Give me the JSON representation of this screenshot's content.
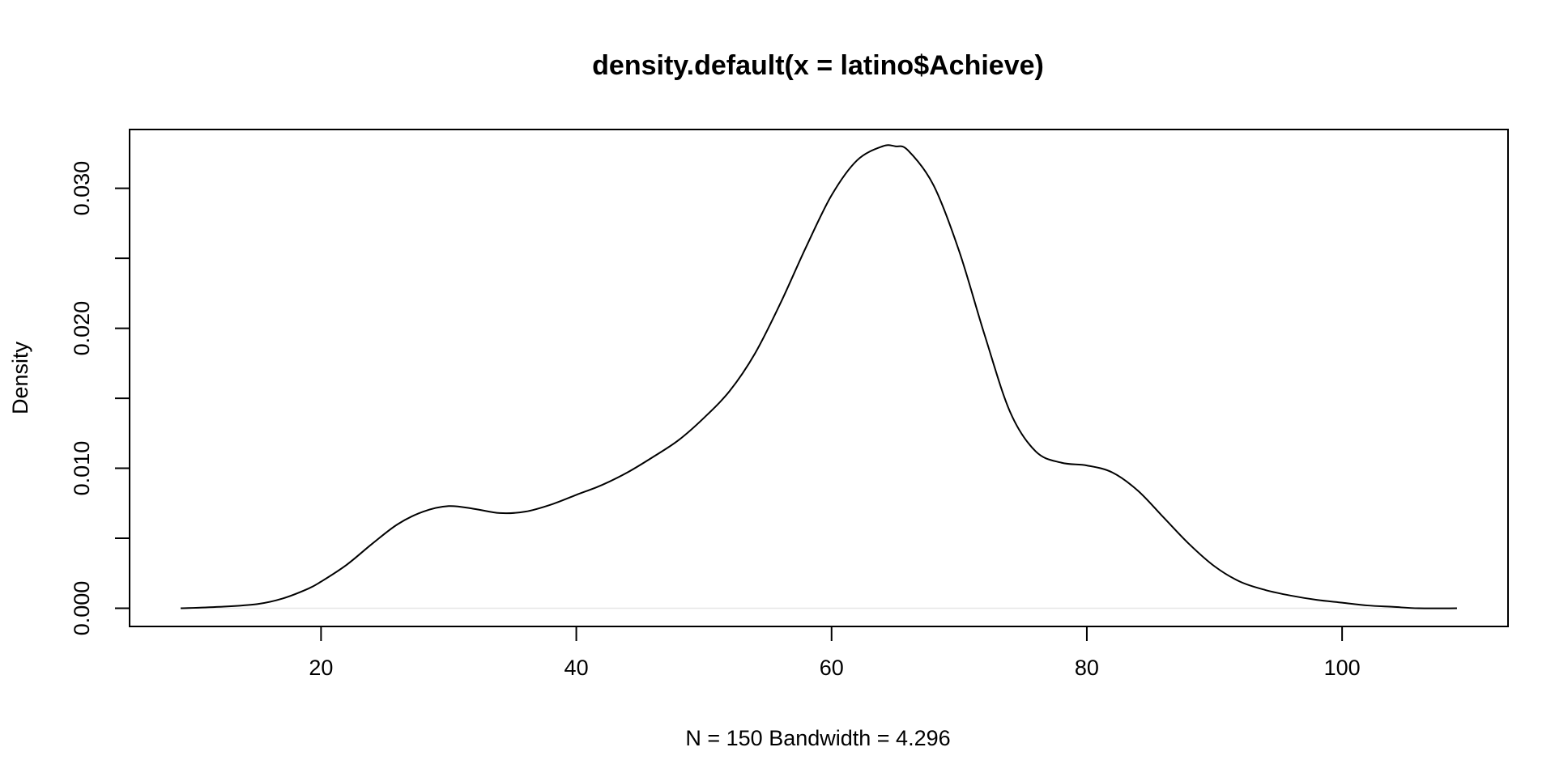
{
  "chart_data": {
    "type": "line",
    "title": "density.default(x = latino$Achieve)",
    "xlabel": "N = 150   Bandwidth = 4.296",
    "ylabel": "Density",
    "xlim": [
      5,
      113
    ],
    "ylim": [
      -0.0013,
      0.0342
    ],
    "x_ticks": [
      20,
      40,
      60,
      80,
      100
    ],
    "y_ticks": [
      0.0,
      0.005,
      0.01,
      0.015,
      0.02,
      0.025,
      0.03
    ],
    "y_tick_labels": [
      {
        "value": 0.0,
        "label": "0.000"
      },
      {
        "value": 0.01,
        "label": "0.010"
      },
      {
        "value": 0.02,
        "label": "0.020"
      },
      {
        "value": 0.03,
        "label": "0.030"
      }
    ],
    "baseline": 0,
    "grid": false,
    "line_color": "#000000",
    "baseline_color": "#e6e6e6",
    "series": [
      {
        "x": [
          9,
          12,
          15,
          17,
          19,
          20,
          22,
          24,
          26,
          28,
          30,
          32,
          34,
          36,
          38,
          40,
          42,
          44,
          46,
          48,
          50,
          52,
          54,
          56,
          58,
          60,
          62,
          64,
          65,
          66,
          68,
          70,
          72,
          74,
          76,
          78,
          80,
          82,
          84,
          86,
          88,
          90,
          92,
          94,
          96,
          98,
          100,
          102,
          104,
          106,
          109
        ],
        "y": [
          0.0,
          0.0001,
          0.0003,
          0.0007,
          0.0014,
          0.0019,
          0.0031,
          0.0046,
          0.006,
          0.0069,
          0.0073,
          0.0071,
          0.0068,
          0.0069,
          0.0074,
          0.0081,
          0.0088,
          0.0097,
          0.0108,
          0.012,
          0.0136,
          0.0155,
          0.0182,
          0.0218,
          0.0258,
          0.0295,
          0.032,
          0.033,
          0.033,
          0.0327,
          0.0302,
          0.0255,
          0.0195,
          0.014,
          0.0112,
          0.0104,
          0.0102,
          0.0097,
          0.0084,
          0.0065,
          0.0046,
          0.003,
          0.0019,
          0.0013,
          0.0009,
          0.0006,
          0.0004,
          0.0002,
          0.0001,
          0.0,
          0.0
        ]
      }
    ]
  }
}
